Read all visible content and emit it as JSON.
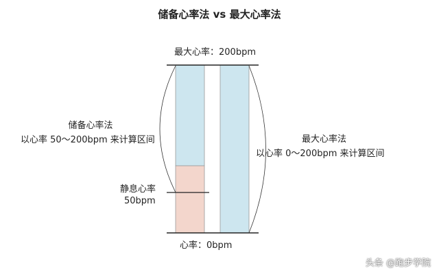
{
  "title": "储备心率法 vs 最大心率法",
  "max_label": "最大心率：200bpm",
  "zero_label": "心率：0bpm",
  "left_method": {
    "name": "储备心率法",
    "desc": "以心率 50～200bpm 来计算区间"
  },
  "right_method": {
    "name": "最大心率法",
    "desc": "以心率 0～200bpm 来计算区间"
  },
  "resting": {
    "name": "静息心率",
    "value": "50bpm"
  },
  "colors": {
    "blue": "#cde6ef",
    "pink": "#f3d6cc",
    "line": "#222222"
  },
  "watermark": "头条 @跑步学院"
}
